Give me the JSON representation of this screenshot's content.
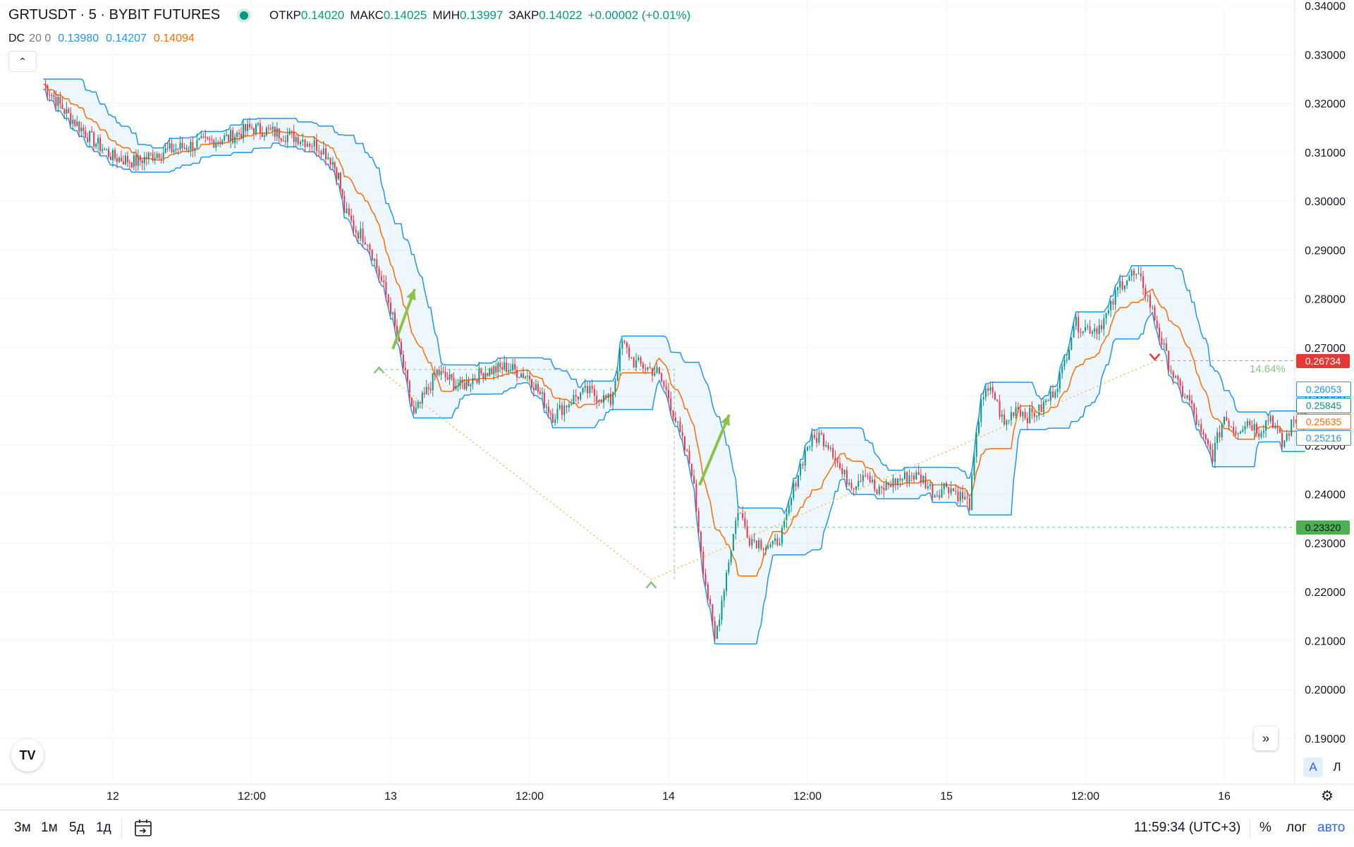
{
  "header": {
    "symbol": "GRTUSDT · 5 · BYBIT FUTURES",
    "open_label": "ОТКР",
    "open_value": "0.14020",
    "high_label": "МАКС",
    "high_value": "0.14025",
    "low_label": "МИН",
    "low_value": "0.13997",
    "close_label": "ЗАКР",
    "close_value": "0.14022",
    "change": "+0.00002 (+0.01%)"
  },
  "indicator": {
    "name": "DC",
    "params": "20 0",
    "lower": "0.13980",
    "upper": "0.14207",
    "basis": "0.14094",
    "colors": {
      "lower": "#2196f3",
      "upper": "#2196f3",
      "basis": "#ff6d00"
    }
  },
  "price_labels": {
    "red": "0.26734",
    "channel_upper": "0.26053",
    "price": "0.25845",
    "basis": "0.25635",
    "channel_lower": "0.25216",
    "green": "0.23320",
    "percent": "14.64%"
  },
  "bottom_bar": {
    "ranges": [
      "3м",
      "1м",
      "5д",
      "1д"
    ],
    "time": "11:59:34 (UTC+3)",
    "percent": "%",
    "log": "лог",
    "auto": "авто"
  },
  "scale_buttons": {
    "a": "A",
    "l": "Л"
  },
  "colors": {
    "up": "#089981",
    "down": "#f23645",
    "channel": "#2196f3",
    "basis": "#ff6d00",
    "arrow": "#8bc34a"
  },
  "chart_data": {
    "type": "line",
    "symbol": "GRTUSDT",
    "timeframe": "5",
    "x_ticks": [
      "12",
      "12:00",
      "13",
      "12:00",
      "14",
      "12:00",
      "15",
      "12:00",
      "16"
    ],
    "y_ticks": [
      "0.19000",
      "0.20000",
      "0.21000",
      "0.22000",
      "0.23000",
      "0.24000",
      "0.25000",
      "0.26000",
      "0.27000",
      "0.28000",
      "0.29000",
      "0.30000",
      "0.31000",
      "0.32000",
      "0.33000",
      "0.34000"
    ],
    "ylim": [
      0.185,
      0.34
    ],
    "grid": true,
    "series": [
      {
        "name": "Price",
        "x": [
          "11 18:00",
          "11 20:00",
          "11 22:00",
          "12 00:00",
          "12 02:00",
          "12 04:00",
          "12 06:00",
          "12 08:00",
          "12 10:00",
          "12 12:00",
          "12 14:00",
          "12 16:00",
          "12 17:00",
          "12 18:00",
          "12 19:00",
          "12 19:30",
          "12 20:00",
          "12 21:00",
          "12 22:00",
          "12 23:00",
          "13 00:00",
          "13 02:00",
          "13 04:00",
          "13 06:00",
          "13 08:00",
          "13 10:00",
          "13 12:00",
          "13 14:00",
          "13 15:00",
          "13 16:00",
          "13 17:00",
          "13 18:00",
          "13 19:00",
          "13 20:00",
          "13 21:00",
          "13 22:00",
          "13 23:00",
          "14 00:00",
          "14 01:00",
          "14 02:00",
          "14 03:00",
          "14 04:00",
          "14 05:00",
          "14 06:00",
          "14 07:00",
          "14 08:00",
          "14 09:00",
          "14 10:00",
          "14 11:00",
          "14 12:00",
          "14 13:00",
          "14 14:00",
          "14 15:00",
          "14 16:00",
          "14 17:00",
          "14 18:00",
          "14 19:00",
          "14 20:00",
          "14 21:00",
          "14 22:00",
          "14 23:00",
          "15 00:00",
          "15 01:00",
          "15 02:00",
          "15 03:00",
          "15 04:00",
          "15 05:00",
          "15 06:00",
          "15 07:00",
          "15 08:00",
          "15 09:00",
          "15 10:00",
          "15 11:00",
          "15 12:00",
          "15 13:00",
          "15 14:00",
          "15 15:00",
          "15 16:00",
          "15 17:00",
          "15 18:00",
          "15 19:00",
          "15 20:00",
          "15 21:00",
          "15 22:00",
          "15 23:00",
          "16 00:00",
          "16 01:00",
          "16 02:00",
          "16 03:00",
          "16 04:00",
          "16 05:00",
          "16 06:00",
          "16 07:00"
        ],
        "y": [
          0.324,
          0.318,
          0.313,
          0.309,
          0.308,
          0.31,
          0.311,
          0.312,
          0.313,
          0.315,
          0.314,
          0.313,
          0.312,
          0.311,
          0.308,
          0.305,
          0.298,
          0.294,
          0.292,
          0.285,
          0.278,
          0.256,
          0.265,
          0.262,
          0.265,
          0.266,
          0.264,
          0.256,
          0.258,
          0.26,
          0.261,
          0.26,
          0.259,
          0.271,
          0.267,
          0.266,
          0.265,
          0.26,
          0.252,
          0.245,
          0.225,
          0.21,
          0.224,
          0.237,
          0.231,
          0.23,
          0.229,
          0.233,
          0.243,
          0.25,
          0.252,
          0.25,
          0.244,
          0.242,
          0.245,
          0.24,
          0.242,
          0.243,
          0.244,
          0.243,
          0.24,
          0.242,
          0.24,
          0.238,
          0.26,
          0.261,
          0.254,
          0.258,
          0.256,
          0.257,
          0.26,
          0.265,
          0.275,
          0.274,
          0.274,
          0.277,
          0.283,
          0.285,
          0.283,
          0.276,
          0.268,
          0.262,
          0.259,
          0.252,
          0.248,
          0.256,
          0.253,
          0.255,
          0.253,
          0.256,
          0.25,
          0.255,
          0.258
        ]
      },
      {
        "name": "DC upper"
      },
      {
        "name": "DC lower"
      },
      {
        "name": "DC basis"
      }
    ],
    "annotations": [
      "14.64%"
    ]
  }
}
